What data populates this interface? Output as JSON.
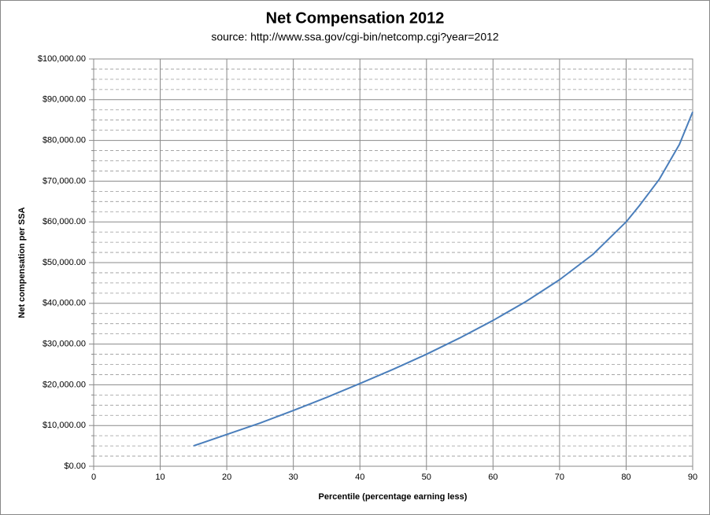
{
  "chart_data": {
    "type": "line",
    "title": "Net Compensation 2012",
    "subtitle": "source: http://www.ssa.gov/cgi-bin/netcomp.cgi?year=2012",
    "x_label": "Percentile (percentage earning less)",
    "y_label": "Net compensation per SSA",
    "x": [
      15,
      20,
      25,
      30,
      35,
      40,
      45,
      50,
      55,
      60,
      65,
      70,
      75,
      80,
      82,
      85,
      88,
      90
    ],
    "series": [
      {
        "name": "Net compensation",
        "color": "#4a7ebb",
        "values": [
          5000,
          7800,
          10600,
          13700,
          16900,
          20300,
          23800,
          27500,
          31500,
          35800,
          40500,
          45800,
          52000,
          60000,
          64000,
          70500,
          79000,
          87000
        ]
      }
    ],
    "xlim": [
      0,
      90
    ],
    "xticks": [
      0,
      10,
      20,
      30,
      40,
      50,
      60,
      70,
      80,
      90
    ],
    "ylim": [
      0,
      100000
    ],
    "yticks": [
      {
        "value": 0,
        "label": "$0.00"
      },
      {
        "value": 10000,
        "label": "$10,000.00"
      },
      {
        "value": 20000,
        "label": "$20,000.00"
      },
      {
        "value": 30000,
        "label": "$30,000.00"
      },
      {
        "value": 40000,
        "label": "$40,000.00"
      },
      {
        "value": 50000,
        "label": "$50,000.00"
      },
      {
        "value": 60000,
        "label": "$60,000.00"
      },
      {
        "value": 70000,
        "label": "$70,000.00"
      },
      {
        "value": 80000,
        "label": "$80,000.00"
      },
      {
        "value": 90000,
        "label": "$90,000.00"
      },
      {
        "value": 100000,
        "label": "$100,000.00"
      }
    ],
    "grid": true,
    "legend": false
  }
}
